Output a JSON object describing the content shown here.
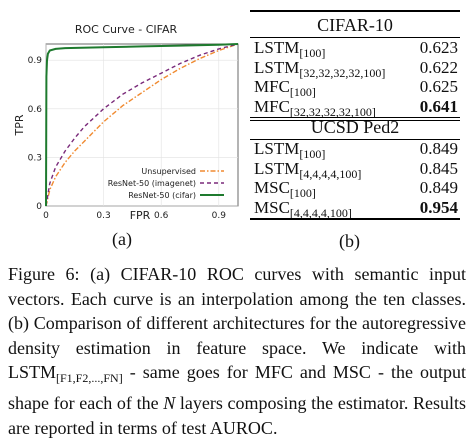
{
  "chart_data": {
    "type": "line",
    "title": "ROC Curve - CIFAR",
    "xlabel": "FPR",
    "ylabel": "TPR",
    "xlim": [
      0,
      1
    ],
    "ylim": [
      0,
      1
    ],
    "xticks": [
      0,
      0.3,
      0.6,
      0.9
    ],
    "yticks": [
      0,
      0.3,
      0.6,
      0.9
    ],
    "xtick_labels": [
      "0",
      "0.3",
      "0.6",
      "0.9"
    ],
    "ytick_labels": [
      "0",
      "0.3",
      "0.6",
      "0.9"
    ],
    "legend_position": "bottom-right",
    "series": [
      {
        "name": "Unsupervised",
        "color": "#f08a30",
        "style": "dashdot",
        "x": [
          0,
          0.02,
          0.05,
          0.1,
          0.15,
          0.2,
          0.3,
          0.4,
          0.5,
          0.6,
          0.7,
          0.8,
          0.9,
          1.0
        ],
        "y": [
          0,
          0.1,
          0.18,
          0.27,
          0.34,
          0.4,
          0.52,
          0.62,
          0.7,
          0.78,
          0.85,
          0.91,
          0.96,
          1.0
        ]
      },
      {
        "name": "ResNet-50 (imagenet)",
        "color": "#7a2a7a",
        "style": "dashed",
        "x": [
          0,
          0.02,
          0.05,
          0.1,
          0.15,
          0.2,
          0.3,
          0.4,
          0.5,
          0.6,
          0.7,
          0.8,
          0.9,
          1.0
        ],
        "y": [
          0,
          0.14,
          0.24,
          0.34,
          0.42,
          0.49,
          0.6,
          0.69,
          0.76,
          0.82,
          0.88,
          0.93,
          0.97,
          1.0
        ]
      },
      {
        "name": "ResNet-50 (cifar)",
        "color": "#1e7a2e",
        "style": "solid",
        "x": [
          0,
          0.002,
          0.005,
          0.01,
          0.02,
          0.05,
          0.1,
          0.3,
          0.5,
          0.7,
          0.9,
          1.0
        ],
        "y": [
          0,
          0.8,
          0.9,
          0.94,
          0.96,
          0.97,
          0.975,
          0.98,
          0.985,
          0.99,
          0.995,
          1.0
        ]
      }
    ]
  },
  "panel_a_label": "(a)",
  "panel_b_label": "(b)",
  "table": {
    "cifar": {
      "title": "CIFAR-10",
      "rows": [
        {
          "base": "LSTM",
          "sub": "[100]",
          "value": "0.623",
          "bold": false
        },
        {
          "base": "LSTM",
          "sub": "[32,32,32,32,100]",
          "value": "0.622",
          "bold": false
        },
        {
          "base": "MFC",
          "sub": "[100]",
          "value": "0.625",
          "bold": false
        },
        {
          "base": "MFC",
          "sub": "[32,32,32,32,100]",
          "value": "0.641",
          "bold": true
        }
      ]
    },
    "ucsd": {
      "title": "UCSD Ped2",
      "rows": [
        {
          "base": "LSTM",
          "sub": "[100]",
          "value": "0.849",
          "bold": false
        },
        {
          "base": "LSTM",
          "sub": "[4,4,4,4,100]",
          "value": "0.845",
          "bold": false
        },
        {
          "base": "MSC",
          "sub": "[100]",
          "value": "0.849",
          "bold": false
        },
        {
          "base": "MSC",
          "sub": "[4,4,4,4,100]",
          "value": "0.954",
          "bold": true
        }
      ]
    }
  },
  "caption": {
    "part1": "Figure 6:  (a) CIFAR-10 ROC curves with semantic input vectors. Each curve is an interpolation among the ten classes. (b) Comparison of different architectures for the autoregressive density estimation in feature space. We indicate with LSTM",
    "sub": "[F1,F2,...,FN]",
    "part2": " - same goes for MFC and MSC - the output shape for each of the ",
    "italic": "N",
    "part3": " layers composing the estimator. Results are reported in terms of test AUROC."
  }
}
